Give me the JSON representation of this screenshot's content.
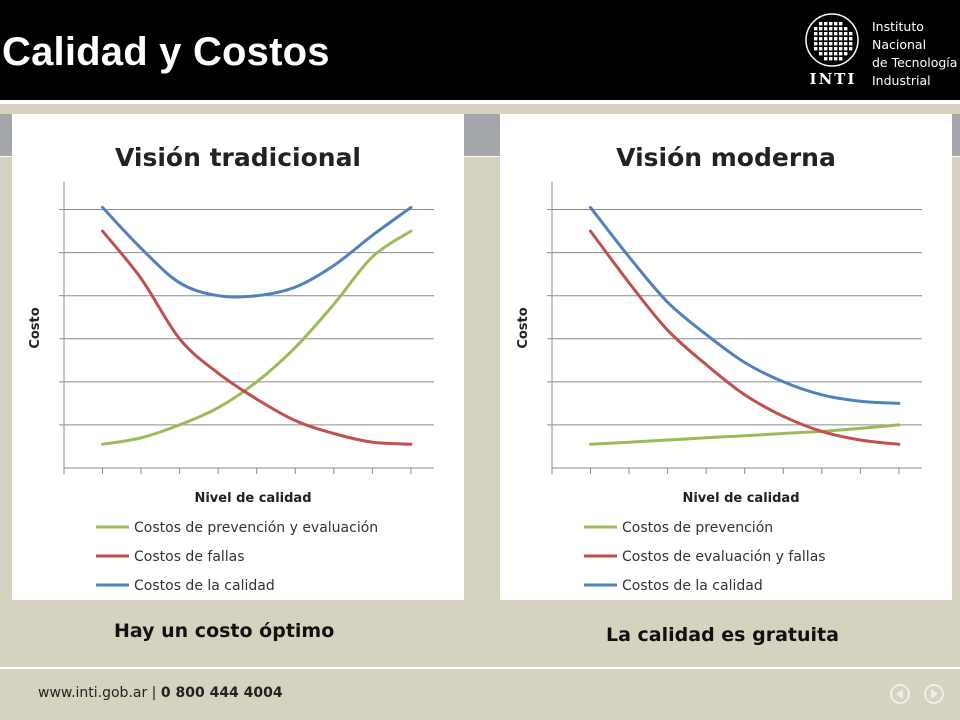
{
  "header": {
    "title": "Calidad y Costos",
    "logo": {
      "name": "INTI",
      "lines": [
        "Instituto",
        "Nacional",
        "de Tecnología",
        "Industrial"
      ]
    }
  },
  "chart_data": [
    {
      "type": "line",
      "title": "Visión tradicional",
      "xlabel": "Nivel de calidad",
      "ylabel": "Costo",
      "x": [
        1,
        2,
        3,
        4,
        5,
        6,
        7,
        8,
        9
      ],
      "xlim": [
        0,
        9.6
      ],
      "ylim": [
        0,
        6.5
      ],
      "grid": true,
      "legend": "bottom",
      "series": [
        {
          "name": "Costos de prevención y evaluación",
          "color": "#9bbb59",
          "values": [
            0.55,
            0.7,
            1.0,
            1.4,
            2.0,
            2.8,
            3.8,
            4.9,
            5.5
          ]
        },
        {
          "name": "Costos de fallas",
          "color": "#c0504d",
          "values": [
            5.5,
            4.4,
            3.0,
            2.2,
            1.6,
            1.1,
            0.8,
            0.6,
            0.55
          ]
        },
        {
          "name": "Costos de la calidad",
          "color": "#4f81bd",
          "values": [
            6.05,
            5.1,
            4.3,
            4.0,
            4.0,
            4.2,
            4.7,
            5.4,
            6.05
          ]
        }
      ]
    },
    {
      "type": "line",
      "title": "Visión moderna",
      "xlabel": "Nivel de calidad",
      "ylabel": "Costo",
      "x": [
        1,
        2,
        3,
        4,
        5,
        6,
        7,
        8,
        9
      ],
      "xlim": [
        0,
        9.6
      ],
      "ylim": [
        0,
        6.5
      ],
      "grid": true,
      "legend": "bottom",
      "series": [
        {
          "name": "Costos de prevención",
          "color": "#9bbb59",
          "values": [
            0.55,
            0.6,
            0.65,
            0.7,
            0.75,
            0.8,
            0.85,
            0.92,
            1.0
          ]
        },
        {
          "name": "Costos de evaluación y fallas",
          "color": "#c0504d",
          "values": [
            5.5,
            4.3,
            3.2,
            2.4,
            1.7,
            1.2,
            0.85,
            0.65,
            0.55
          ]
        },
        {
          "name": "Costos de la calidad",
          "color": "#4f81bd",
          "values": [
            6.05,
            4.9,
            3.85,
            3.1,
            2.45,
            2.0,
            1.7,
            1.55,
            1.5
          ]
        }
      ]
    }
  ],
  "captions": {
    "left": "Hay un costo óptimo",
    "right": "La calidad es gratuita"
  },
  "footer": {
    "url": "www.inti.gob.ar",
    "separator": " | ",
    "phone": "0 800 444 4004"
  },
  "nav": {
    "prev_icon": "prev-arrow-icon",
    "next_icon": "next-arrow-icon"
  }
}
